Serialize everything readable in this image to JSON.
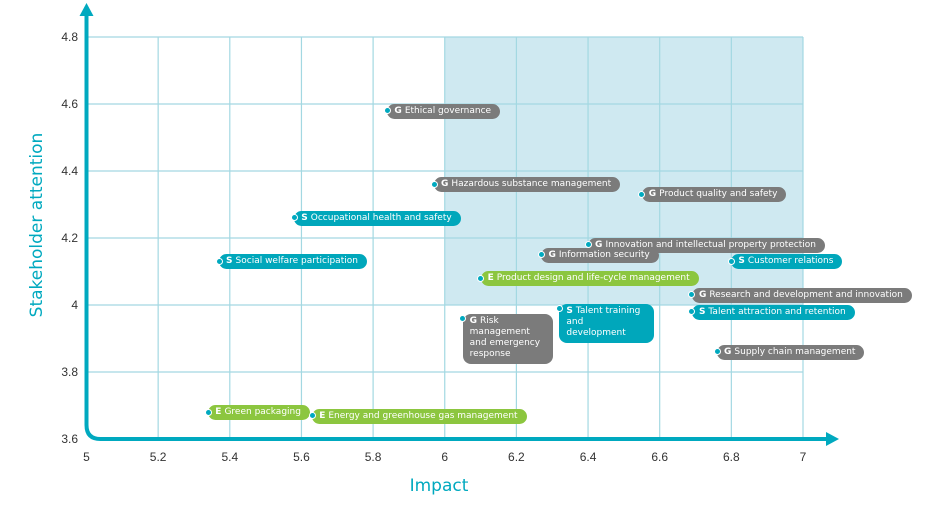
{
  "chart_data": {
    "type": "scatter",
    "title": "",
    "xlabel": "Impact",
    "ylabel": "Stakeholder attention",
    "xlim": [
      5,
      7
    ],
    "ylim": [
      3.6,
      4.8
    ],
    "xticks": [
      "5",
      "5.2",
      "5.4",
      "5.6",
      "5.8",
      "6",
      "6.2",
      "6.4",
      "6.6",
      "6.8",
      "7"
    ],
    "yticks": [
      "3.6",
      "3.8",
      "4",
      "4.2",
      "4.4",
      "4.6",
      "4.8"
    ],
    "grid": true,
    "highlight_region": {
      "x": [
        6,
        7
      ],
      "y": [
        4,
        4.8
      ]
    },
    "category_colors": {
      "G": "#7b7b7b",
      "S": "#00a7bb",
      "E": "#8cc63f"
    },
    "points": [
      {
        "cat": "G",
        "label": "Ethical governance",
        "x": 5.84,
        "y": 4.58
      },
      {
        "cat": "G",
        "label": "Hazardous substance management",
        "x": 5.97,
        "y": 4.36
      },
      {
        "cat": "G",
        "label": "Product quality and safety",
        "x": 6.55,
        "y": 4.33
      },
      {
        "cat": "S",
        "label": "Occupational health and safety",
        "x": 5.58,
        "y": 4.26
      },
      {
        "cat": "G",
        "label": "Innovation and intellectual property protection",
        "x": 6.4,
        "y": 4.18
      },
      {
        "cat": "G",
        "label": "Information security",
        "x": 6.27,
        "y": 4.15
      },
      {
        "cat": "S",
        "label": "Social welfare participation",
        "x": 5.37,
        "y": 4.13
      },
      {
        "cat": "S",
        "label": "Customer relations",
        "x": 6.8,
        "y": 4.13
      },
      {
        "cat": "E",
        "label": "Product design and life-cycle management",
        "x": 6.1,
        "y": 4.08
      },
      {
        "cat": "G",
        "label": "Research and development and innovation",
        "x": 6.69,
        "y": 4.03
      },
      {
        "cat": "S",
        "label": "Talent training and development",
        "x": 6.32,
        "y": 3.99,
        "wrap": 95
      },
      {
        "cat": "S",
        "label": "Talent attraction and retention",
        "x": 6.69,
        "y": 3.98
      },
      {
        "cat": "G",
        "label": "Risk management and emergency response",
        "x": 6.05,
        "y": 3.96,
        "wrap": 90
      },
      {
        "cat": "G",
        "label": "Supply chain management",
        "x": 6.76,
        "y": 3.86
      },
      {
        "cat": "E",
        "label": "Green packaging",
        "x": 5.34,
        "y": 3.68
      },
      {
        "cat": "E",
        "label": "Energy and greenhouse gas management",
        "x": 5.63,
        "y": 3.67
      }
    ]
  }
}
